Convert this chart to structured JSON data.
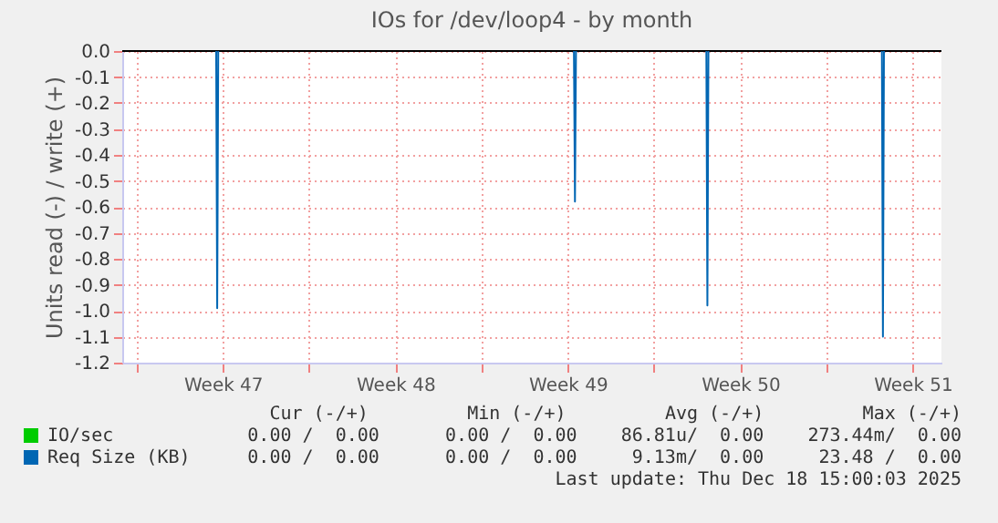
{
  "chart_data": {
    "type": "line",
    "title": "IOs for /dev/loop4 - by month",
    "ylabel": "Units read (-) / write (+)",
    "xlim": [
      "2025-11-16T10:00",
      "2025-12-19T16:00"
    ],
    "xticks": [
      {
        "value": "2025-11-17",
        "label": null
      },
      {
        "value": "2025-11-20T12:00",
        "label": "Week 47"
      },
      {
        "value": "2025-11-24",
        "label": null
      },
      {
        "value": "2025-11-27T12:00",
        "label": "Week 48"
      },
      {
        "value": "2025-12-01",
        "label": null
      },
      {
        "value": "2025-12-04T12:00",
        "label": "Week 49"
      },
      {
        "value": "2025-12-08",
        "label": null
      },
      {
        "value": "2025-12-11T12:00",
        "label": "Week 50"
      },
      {
        "value": "2025-12-15",
        "label": null
      },
      {
        "value": "2025-12-18T12:00",
        "label": "Week 51"
      }
    ],
    "ylim": [
      -1.2,
      0
    ],
    "yticks": [
      {
        "value": 0,
        "label": "0.0"
      },
      {
        "value": -0.1,
        "label": "-0.1"
      },
      {
        "value": -0.2,
        "label": "-0.2"
      },
      {
        "value": -0.3,
        "label": "-0.3"
      },
      {
        "value": -0.4,
        "label": "-0.4"
      },
      {
        "value": -0.5,
        "label": "-0.5"
      },
      {
        "value": -0.6,
        "label": "-0.6"
      },
      {
        "value": -0.7,
        "label": "-0.7"
      },
      {
        "value": -0.8,
        "label": "-0.8"
      },
      {
        "value": -0.9,
        "label": "-0.9"
      },
      {
        "value": -1,
        "label": "-1.0"
      },
      {
        "value": -1.1,
        "label": "-1.1"
      },
      {
        "value": -1.2,
        "label": "-1.2"
      }
    ],
    "series": [
      {
        "name": "IO/sec",
        "color": "#00cc00"
      },
      {
        "name": "Req Size (KB)",
        "color": "#0066b3",
        "x": [
          "2025-11-20T05:30",
          "2025-11-20T06:30",
          "2025-11-20T07:30",
          "2025-11-20T08:00",
          "2025-12-04T18:00",
          "2025-12-04T19:00",
          "2025-12-04T20:00",
          "2025-12-04T21:00",
          "2025-12-10T03:00",
          "2025-12-10T04:00",
          "2025-12-10T05:00",
          "2025-12-10T06:00",
          "2025-12-17T06:00",
          "2025-12-17T07:00",
          "2025-12-17T08:00"
        ],
        "values": [
          0,
          -0.99,
          0,
          null,
          0,
          -0.58,
          0,
          null,
          0,
          -0.98,
          0,
          null,
          0,
          -1.1,
          0
        ]
      }
    ],
    "ref_lines": [
      {
        "axis": "y",
        "value": 0,
        "color": "#000000"
      }
    ],
    "grid": true,
    "legend": "bottom left",
    "line_style": "solid",
    "annotations": [
      "Cur (-/+)         Min (-/+)         Avg (-/+)         Max (-/+)",
      "0.00 /  0.00      0.00 /  0.00    86.81u/  0.00    273.44m/  0.00",
      "0.00 /  0.00      0.00 /  0.00     9.13m/  0.00     23.48 /  0.00",
      "Last update: Thu Dec 18 15:00:03 2025"
    ]
  }
}
